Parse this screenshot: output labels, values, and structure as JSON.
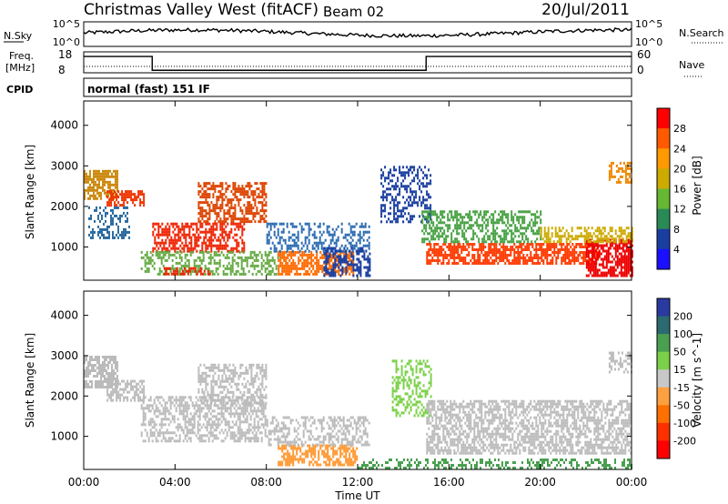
{
  "header": {
    "title": "Christmas Valley West (fitACF)",
    "beam": "Beam 02",
    "date": "20/Jul/2011"
  },
  "top_panels": {
    "nsky_label": "N.Sky",
    "nsky_ticks": [
      "10^5",
      "10^0"
    ],
    "nsearch_label": "N.Search",
    "nsearch_ticks": [
      "10^5",
      "10^0"
    ],
    "freq_label_line1": "Freq.",
    "freq_label_line2": "[MHz]",
    "freq_ticks": [
      "18",
      "8"
    ],
    "nave_label": "Nave",
    "nave_ticks": [
      "60",
      "0"
    ],
    "cpid_label": "CPID",
    "cpid_text": "normal (fast) 151 IF"
  },
  "chart_data": [
    {
      "type": "heatmap",
      "name": "power-panel",
      "ylabel": "Slant Range [km]",
      "yticks": [
        "4000",
        "3000",
        "2000",
        "1000"
      ],
      "ytick_values": [
        4000,
        3000,
        2000,
        1000
      ],
      "ylim": [
        180,
        4600
      ],
      "xlim_hours": [
        0,
        24
      ],
      "colorbar": {
        "label": "Power [dB]",
        "ticks": [
          "28",
          "24",
          "20",
          "16",
          "12",
          "8",
          "4"
        ],
        "colors": [
          "#ff0000",
          "#ff5a00",
          "#ff9900",
          "#ccaa00",
          "#66b832",
          "#2a8a55",
          "#1a3ea0",
          "#1a10ff"
        ]
      },
      "regions": [
        {
          "t0": 0.0,
          "t1": 1.5,
          "r0": 2200,
          "r1": 2900,
          "color": "#cc8a10",
          "density": 0.7
        },
        {
          "t0": 1.0,
          "t1": 2.6,
          "r0": 2000,
          "r1": 2400,
          "color": "#ee3300",
          "density": 0.7
        },
        {
          "t0": 0.2,
          "t1": 2.0,
          "r0": 1200,
          "r1": 2000,
          "color": "#2a6aa0",
          "density": 0.35
        },
        {
          "t0": 3.0,
          "t1": 7.0,
          "r0": 900,
          "r1": 1600,
          "color": "#ee2200",
          "density": 0.6
        },
        {
          "t0": 5.0,
          "t1": 8.0,
          "r0": 1600,
          "r1": 2600,
          "color": "#dd4400",
          "density": 0.55
        },
        {
          "t0": 2.5,
          "t1": 8.5,
          "r0": 300,
          "r1": 900,
          "color": "#66aa44",
          "density": 0.5
        },
        {
          "t0": 3.5,
          "t1": 5.5,
          "r0": 300,
          "r1": 500,
          "color": "#ee2200",
          "density": 0.6
        },
        {
          "t0": 8.5,
          "t1": 11.8,
          "r0": 300,
          "r1": 900,
          "color": "#ff6a00",
          "density": 0.65
        },
        {
          "t0": 8.0,
          "t1": 12.5,
          "r0": 900,
          "r1": 1600,
          "color": "#2a6ab0",
          "density": 0.4
        },
        {
          "t0": 10.5,
          "t1": 12.5,
          "r0": 300,
          "r1": 1000,
          "color": "#1a3ea0",
          "density": 0.5
        },
        {
          "t0": 13.0,
          "t1": 15.2,
          "r0": 1600,
          "r1": 3000,
          "color": "#1a3ea0",
          "density": 0.4
        },
        {
          "t0": 15.0,
          "t1": 22.5,
          "r0": 600,
          "r1": 1100,
          "color": "#ff3a00",
          "density": 0.7
        },
        {
          "t0": 14.8,
          "t1": 20.0,
          "r0": 1100,
          "r1": 1900,
          "color": "#44a040",
          "density": 0.5
        },
        {
          "t0": 22.0,
          "t1": 24.0,
          "r0": 300,
          "r1": 1200,
          "color": "#ee0000",
          "density": 0.7
        },
        {
          "t0": 20.0,
          "t1": 24.0,
          "r0": 1100,
          "r1": 1500,
          "color": "#ccaa00",
          "density": 0.5
        },
        {
          "t0": 23.0,
          "t1": 24.0,
          "r0": 2600,
          "r1": 3100,
          "color": "#ee8800",
          "density": 0.5
        }
      ]
    },
    {
      "type": "heatmap",
      "name": "velocity-panel",
      "ylabel": "Slant Range [km]",
      "yticks": [
        "4000",
        "3000",
        "2000",
        "1000"
      ],
      "ytick_values": [
        4000,
        3000,
        2000,
        1000
      ],
      "ylim": [
        180,
        4600
      ],
      "xlim_hours": [
        0,
        24
      ],
      "colorbar": {
        "label": "Velocity [m s^-1]",
        "ticks": [
          "200",
          "100",
          "50",
          "15",
          "-15",
          "-50",
          "-100",
          "-200"
        ],
        "colors": [
          "#2a3aa0",
          "#2a6a70",
          "#4aa050",
          "#7ad048",
          "#c8c8c8",
          "#ffa040",
          "#ff7000",
          "#ff3000",
          "#ff0000"
        ]
      },
      "regions": [
        {
          "t0": 0.0,
          "t1": 1.5,
          "r0": 2200,
          "r1": 3000,
          "color": "#bbbbbb",
          "density": 0.7
        },
        {
          "t0": 1.0,
          "t1": 2.6,
          "r0": 1900,
          "r1": 2400,
          "color": "#bbbbbb",
          "density": 0.6
        },
        {
          "t0": 2.5,
          "t1": 8.0,
          "r0": 900,
          "r1": 2000,
          "color": "#bbbbbb",
          "density": 0.55
        },
        {
          "t0": 5.0,
          "t1": 8.0,
          "r0": 1800,
          "r1": 2800,
          "color": "#bbbbbb",
          "density": 0.5
        },
        {
          "t0": 8.5,
          "t1": 12.0,
          "r0": 300,
          "r1": 800,
          "color": "#ff9933",
          "density": 0.6
        },
        {
          "t0": 8.0,
          "t1": 12.5,
          "r0": 800,
          "r1": 1500,
          "color": "#bbbbbb",
          "density": 0.45
        },
        {
          "t0": 13.5,
          "t1": 15.2,
          "r0": 1500,
          "r1": 2900,
          "color": "#7ad048",
          "density": 0.4
        },
        {
          "t0": 15.0,
          "t1": 24.0,
          "r0": 600,
          "r1": 1900,
          "color": "#bbbbbb",
          "density": 0.6
        },
        {
          "t0": 12.0,
          "t1": 24.0,
          "r0": 200,
          "r1": 450,
          "color": "#4aa050",
          "density": 0.4
        },
        {
          "t0": 23.0,
          "t1": 24.0,
          "r0": 2600,
          "r1": 3100,
          "color": "#bbbbbb",
          "density": 0.5
        }
      ]
    }
  ],
  "xaxis": {
    "label": "Time UT",
    "ticks": [
      "00:00",
      "04:00",
      "08:00",
      "12:00",
      "16:00",
      "20:00",
      "00:00"
    ],
    "tick_hours": [
      0,
      4,
      8,
      12,
      16,
      20,
      24
    ]
  },
  "traces": {
    "nsky_level": 0.55,
    "freq_steps": [
      {
        "t0": 0,
        "t1": 3.0,
        "level": 0.78
      },
      {
        "t0": 3.0,
        "t1": 15.0,
        "level": 0.12
      },
      {
        "t0": 15.0,
        "t1": 24,
        "level": 0.78
      }
    ]
  }
}
